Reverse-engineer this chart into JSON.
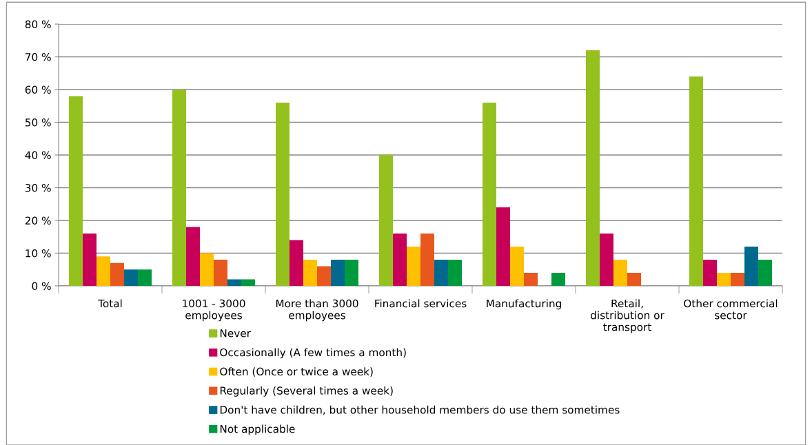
{
  "chart_data": {
    "type": "bar",
    "categories": [
      "Total",
      "1001 - 3000\nemployees",
      "More than 3000\nemployees",
      "Financial services",
      "Manufacturing",
      "Retail,\ndistribution or\ntransport",
      "Other commercial\nsector"
    ],
    "series": [
      {
        "name": "Never",
        "color": "#95c11f",
        "values": [
          58,
          60,
          56,
          40,
          56,
          72,
          64
        ]
      },
      {
        "name": "Occasionally (A few times a month)",
        "color": "#c8005a",
        "values": [
          16,
          18,
          14,
          16,
          24,
          16,
          8
        ]
      },
      {
        "name": "Often (Once or twice a week)",
        "color": "#ffc000",
        "values": [
          9,
          10,
          8,
          12,
          12,
          8,
          4
        ]
      },
      {
        "name": "Regularly (Several times a week)",
        "color": "#e8571e",
        "values": [
          7,
          8,
          6,
          16,
          4,
          4,
          4
        ]
      },
      {
        "name": "Don't have children, but other household members do use them sometimes",
        "color": "#006a8e",
        "values": [
          5,
          2,
          8,
          8,
          0,
          0,
          12
        ]
      },
      {
        "name": "Not applicable",
        "color": "#009a3e",
        "values": [
          5,
          2,
          8,
          8,
          4,
          0,
          8
        ]
      }
    ],
    "ylim": [
      0,
      80
    ],
    "yticks": [
      {
        "value": 0,
        "label": "0 %"
      },
      {
        "value": 10,
        "label": "10 %"
      },
      {
        "value": 20,
        "label": "20 %"
      },
      {
        "value": 30,
        "label": "30 %"
      },
      {
        "value": 40,
        "label": "40 %"
      },
      {
        "value": 50,
        "label": "50 %"
      },
      {
        "value": 60,
        "label": "60 %"
      },
      {
        "value": 70,
        "label": "70 %"
      },
      {
        "value": 80,
        "label": "80 %"
      }
    ],
    "grid": "y",
    "legend": "bottom"
  }
}
